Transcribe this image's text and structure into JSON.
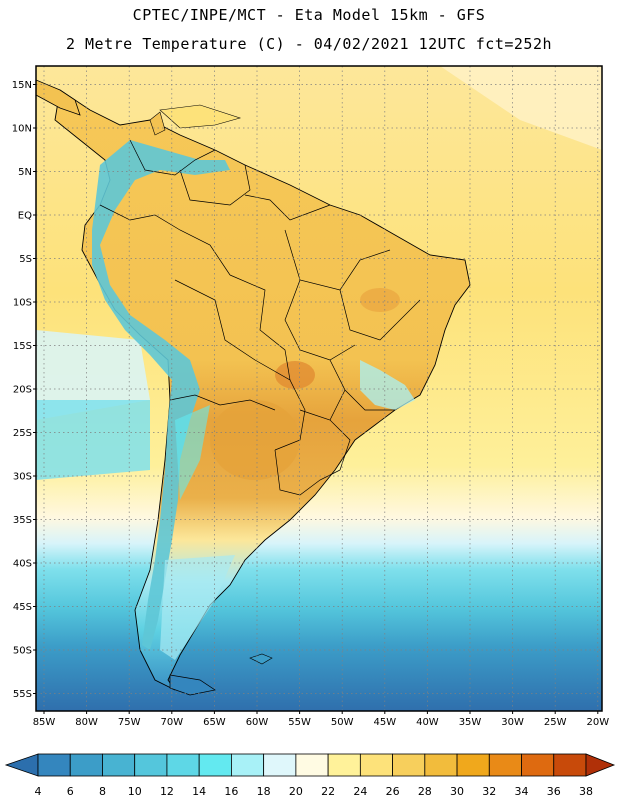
{
  "header": {
    "title_line1": "CPTEC/INPE/MCT -  Eta Model 15km - GFS",
    "title_line2": "2 Metre Temperature (C) - 04/02/2021 12UTC fct=252h"
  },
  "map": {
    "lat_ticks": [
      "15N",
      "10N",
      "5N",
      "EQ",
      "5S",
      "10S",
      "15S",
      "20S",
      "25S",
      "30S",
      "35S",
      "40S",
      "45S",
      "50S",
      "55S"
    ],
    "lon_ticks": [
      "85W",
      "80W",
      "75W",
      "70W",
      "65W",
      "60W",
      "55W",
      "50W",
      "45W",
      "40W",
      "35W",
      "30W",
      "25W",
      "20W"
    ],
    "colors": {
      "ocean_warm": "#fde27a",
      "ocean_mid": "#fef29a",
      "land_warm": "#f2c452",
      "land_hot": "#e5a23a",
      "andes_cold": "#5ec6d6",
      "south_ocean": "#49b8cf",
      "south_deep": "#3a8fc4",
      "pale": "#fff8e0"
    }
  },
  "colorbar": {
    "labels": [
      "4",
      "6",
      "8",
      "10",
      "12",
      "14",
      "16",
      "18",
      "20",
      "22",
      "24",
      "26",
      "28",
      "30",
      "32",
      "34",
      "36",
      "38"
    ],
    "colors": [
      "#2c6fad",
      "#3486be",
      "#3c9dc8",
      "#48b3d2",
      "#54c6dc",
      "#5ed7e6",
      "#63e9f0",
      "#a8f1f7",
      "#dff7fb",
      "#fffbe3",
      "#fff29a",
      "#fde27a",
      "#f7cf5c",
      "#f2bc3c",
      "#f0a81c",
      "#e98a17",
      "#de6a10",
      "#c84a0a",
      "#b03008"
    ]
  }
}
